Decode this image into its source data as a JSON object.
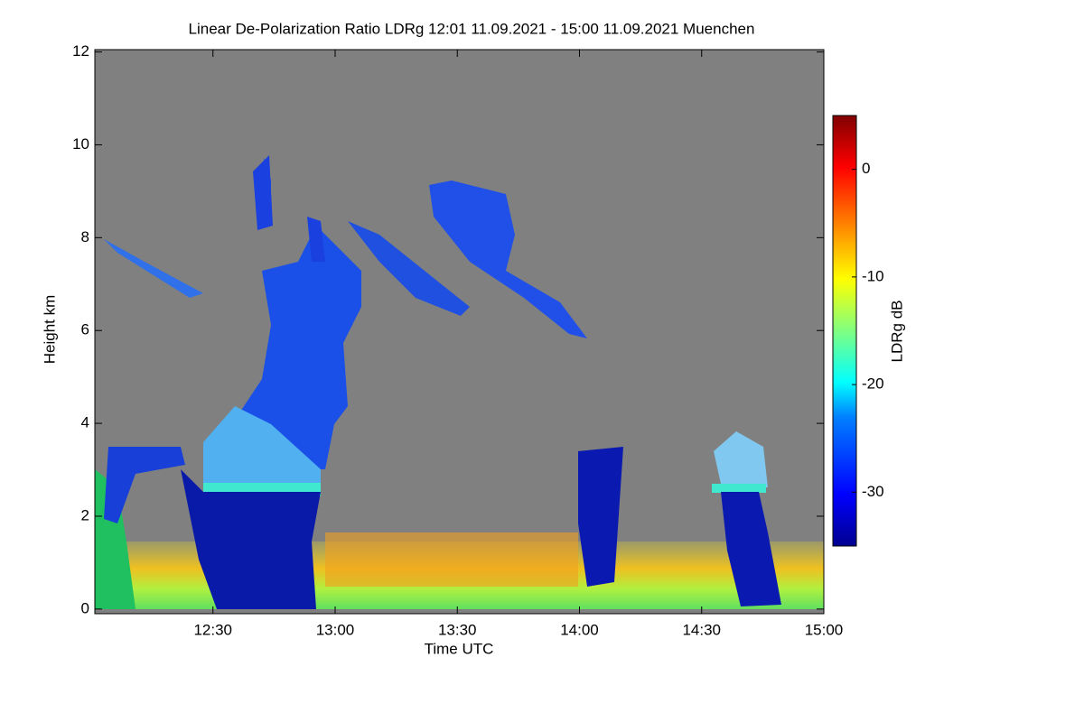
{
  "chart_data": {
    "type": "heatmap",
    "title": "Linear De-Polarization Ratio LDRg   12:01 11.09.2021 - 15:00 11.09.2021 Muenchen",
    "xlabel": "Time UTC",
    "ylabel": "Height km",
    "xlim": [
      721,
      900
    ],
    "xticks": [
      {
        "value": 750,
        "label": "12:30"
      },
      {
        "value": 780,
        "label": "13:00"
      },
      {
        "value": 810,
        "label": "13:30"
      },
      {
        "value": 840,
        "label": "14:00"
      },
      {
        "value": 870,
        "label": "14:30"
      },
      {
        "value": 900,
        "label": "15:00"
      }
    ],
    "ylim": [
      -0.1,
      12.05
    ],
    "yticks": [
      0,
      2,
      4,
      6,
      8,
      10,
      12
    ],
    "colorbar_label": "LDRg dB",
    "clim": [
      -35,
      5
    ],
    "cticks": [
      0,
      -10,
      -20,
      -30
    ],
    "background": "#808080"
  }
}
